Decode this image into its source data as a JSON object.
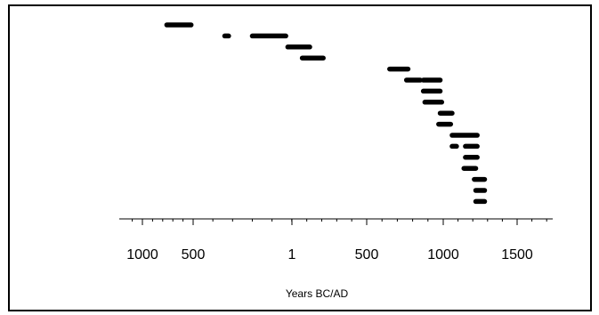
{
  "chart_data": {
    "type": "range-dot",
    "xlabel": "Years BC/AD",
    "xlim": [
      -1120,
      1700
    ],
    "x_ticks": [
      {
        "value": -1000,
        "label": "1000"
      },
      {
        "value": -500,
        "label": "500"
      },
      {
        "value": 1,
        "label": "1"
      },
      {
        "value": 500,
        "label": "500"
      },
      {
        "value": 1000,
        "label": "1000"
      },
      {
        "value": 1500,
        "label": "1500"
      }
    ],
    "grid": false,
    "series": [
      {
        "values": [
          {
            "start": -760,
            "end": -520
          }
        ]
      },
      {
        "values": [
          {
            "start": -340,
            "end": -320
          },
          {
            "start": -200,
            "end": -30
          }
        ]
      },
      {
        "values": [
          {
            "start": -20,
            "end": 120
          }
        ]
      },
      {
        "values": [
          {
            "start": 70,
            "end": 210
          }
        ]
      },
      {
        "values": [
          {
            "start": 650,
            "end": 770
          }
        ]
      },
      {
        "values": [
          {
            "start": 760,
            "end": 850
          },
          {
            "start": 870,
            "end": 980
          }
        ]
      },
      {
        "values": [
          {
            "start": 870,
            "end": 980
          }
        ]
      },
      {
        "values": [
          {
            "start": 880,
            "end": 990
          }
        ]
      },
      {
        "values": [
          {
            "start": 980,
            "end": 1060
          }
        ]
      },
      {
        "values": [
          {
            "start": 970,
            "end": 1050
          }
        ]
      },
      {
        "values": [
          {
            "start": 1060,
            "end": 1230
          }
        ]
      },
      {
        "values": [
          {
            "start": 1060,
            "end": 1090
          },
          {
            "start": 1150,
            "end": 1230
          }
        ]
      },
      {
        "values": [
          {
            "start": 1150,
            "end": 1230
          }
        ]
      },
      {
        "values": [
          {
            "start": 1140,
            "end": 1220
          }
        ]
      },
      {
        "values": [
          {
            "start": 1210,
            "end": 1280
          }
        ]
      },
      {
        "values": [
          {
            "start": 1220,
            "end": 1280
          }
        ]
      },
      {
        "values": [
          {
            "start": 1220,
            "end": 1280
          }
        ]
      }
    ]
  },
  "colors": {
    "marks": "#000000",
    "axis": "#000000",
    "background": "#ffffff"
  }
}
